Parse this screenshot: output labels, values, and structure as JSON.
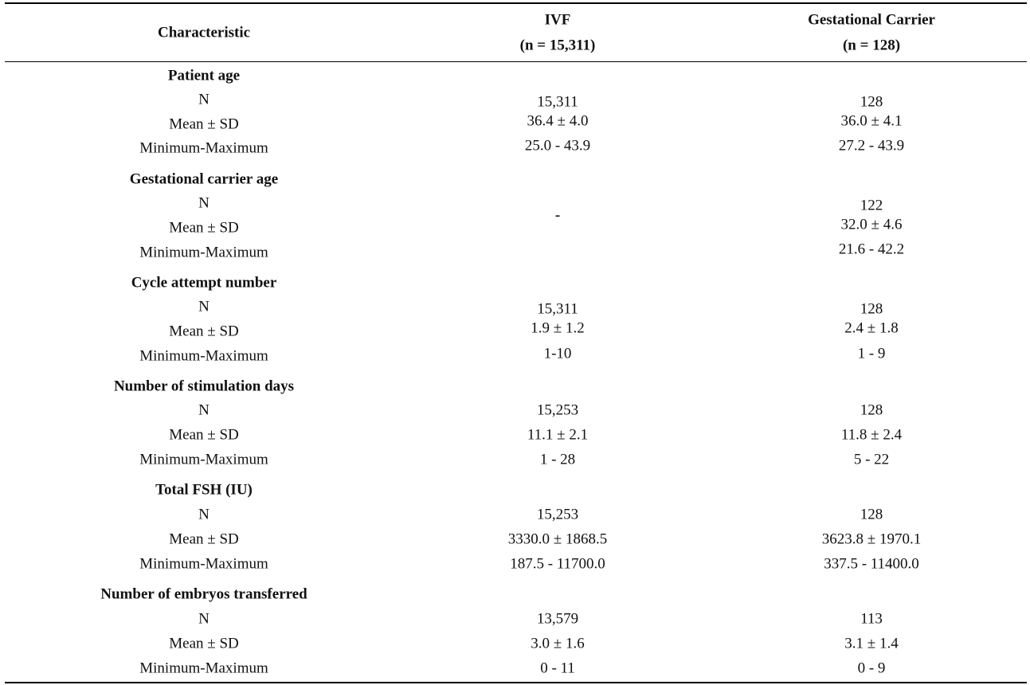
{
  "header": {
    "characteristic": "Characteristic",
    "ivf_title": "IVF",
    "ivf_n": "(n = 15,311)",
    "gc_title": "Gestational Carrier",
    "gc_n": "(n = 128)"
  },
  "sections": [
    {
      "title": "Patient age",
      "rows": [
        {
          "label": "N",
          "ivf": "15,311",
          "gc": "128"
        },
        {
          "label": "Mean ± SD",
          "ivf": "36.4 ± 4.0",
          "gc": "36.0 ± 4.1"
        },
        {
          "label": "Minimum-Maximum",
          "ivf": "25.0 - 43.9",
          "gc": "27.2 - 43.9"
        }
      ]
    },
    {
      "title": "Gestational carrier age",
      "ivf_merged": "-",
      "rows": [
        {
          "label": "N",
          "gc": "122"
        },
        {
          "label": "Mean ± SD",
          "gc": "32.0 ± 4.6"
        },
        {
          "label": "Minimum-Maximum",
          "gc": "21.6 - 42.2"
        }
      ]
    },
    {
      "title": "Cycle attempt number",
      "rows": [
        {
          "label": "N",
          "ivf": "15,311",
          "gc": "128"
        },
        {
          "label": "Mean ± SD",
          "ivf": "1.9 ± 1.2",
          "gc": "2.4 ± 1.8"
        },
        {
          "label": "Minimum-Maximum",
          "ivf": "1-10",
          "gc": "1 - 9"
        }
      ]
    },
    {
      "title": "Number of stimulation days",
      "rows": [
        {
          "label": "N",
          "ivf": "15,253",
          "gc": "128"
        },
        {
          "label": "Mean ± SD",
          "ivf": "11.1 ± 2.1",
          "gc": "11.8 ± 2.4"
        },
        {
          "label": "Minimum-Maximum",
          "ivf": "1 - 28",
          "gc": "5 - 22"
        }
      ]
    },
    {
      "title": "Total FSH (IU)",
      "rows": [
        {
          "label": "N",
          "ivf": "15,253",
          "gc": "128"
        },
        {
          "label": "Mean ± SD",
          "ivf": "3330.0 ± 1868.5",
          "gc": "3623.8 ± 1970.1"
        },
        {
          "label": "Minimum-Maximum",
          "ivf": "187.5 - 11700.0",
          "gc": "337.5 - 11400.0"
        }
      ]
    },
    {
      "title": "Number of embryos transferred",
      "rows": [
        {
          "label": "N",
          "ivf": "13,579",
          "gc": "113"
        },
        {
          "label": "Mean ± SD",
          "ivf": "3.0 ± 1.6",
          "gc": "3.1 ± 1.4"
        },
        {
          "label": "Minimum-Maximum",
          "ivf": "0 - 11",
          "gc": "0 - 9"
        }
      ]
    }
  ]
}
